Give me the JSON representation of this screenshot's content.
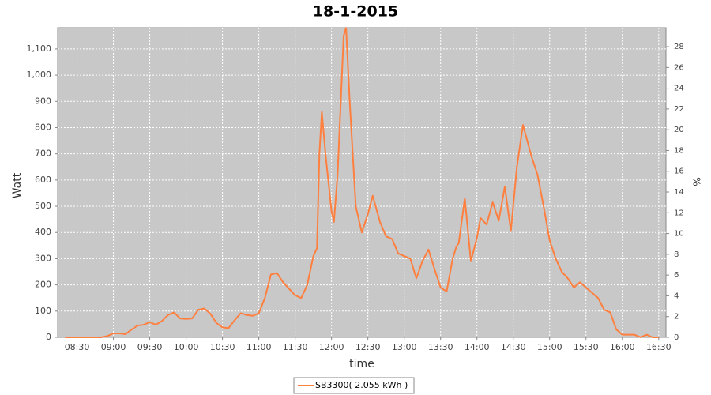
{
  "chart_data": {
    "type": "line",
    "title": "18-1-2015",
    "x_label": "time",
    "y_label": "Watt",
    "y2_label": "%",
    "x": [
      "08:20",
      "08:30",
      "08:40",
      "08:50",
      "08:55",
      "09:00",
      "09:05",
      "09:10",
      "09:15",
      "09:20",
      "09:25",
      "09:30",
      "09:35",
      "09:40",
      "09:45",
      "09:50",
      "09:55",
      "10:00",
      "10:05",
      "10:10",
      "10:15",
      "10:20",
      "10:25",
      "10:30",
      "10:35",
      "10:40",
      "10:45",
      "10:50",
      "10:55",
      "11:00",
      "11:05",
      "11:10",
      "11:15",
      "11:20",
      "11:25",
      "11:30",
      "11:35",
      "11:40",
      "11:45",
      "11:48",
      "11:50",
      "11:52",
      "11:55",
      "12:00",
      "12:02",
      "12:05",
      "12:10",
      "12:12",
      "12:15",
      "12:20",
      "12:25",
      "12:30",
      "12:34",
      "12:40",
      "12:45",
      "12:50",
      "12:55",
      "13:00",
      "13:05",
      "13:10",
      "13:15",
      "13:20",
      "13:25",
      "13:30",
      "13:35",
      "13:40",
      "13:43",
      "13:45",
      "13:50",
      "13:55",
      "14:00",
      "14:03",
      "14:08",
      "14:13",
      "14:18",
      "14:23",
      "14:28",
      "14:33",
      "14:38",
      "14:45",
      "14:50",
      "14:55",
      "15:00",
      "15:05",
      "15:10",
      "15:15",
      "15:20",
      "15:25",
      "15:30",
      "15:35",
      "15:40",
      "15:45",
      "15:50",
      "15:55",
      "16:00",
      "16:05",
      "16:10",
      "16:15",
      "16:20",
      "16:25",
      "16:30"
    ],
    "series": [
      {
        "name": "SB3300( 2.055 kWh )",
        "color": "#ff7f3f",
        "values": [
          0,
          0,
          0,
          0,
          5,
          15,
          15,
          12,
          30,
          45,
          48,
          58,
          48,
          62,
          85,
          95,
          72,
          70,
          72,
          105,
          110,
          90,
          55,
          38,
          35,
          65,
          92,
          85,
          82,
          92,
          150,
          240,
          245,
          210,
          185,
          160,
          150,
          200,
          310,
          340,
          700,
          860,
          700,
          480,
          440,
          620,
          1150,
          1180,
          900,
          500,
          400,
          470,
          540,
          440,
          385,
          375,
          320,
          310,
          300,
          225,
          290,
          335,
          260,
          190,
          175,
          300,
          345,
          360,
          530,
          290,
          380,
          455,
          430,
          515,
          445,
          575,
          405,
          650,
          810,
          690,
          620,
          500,
          370,
          300,
          250,
          225,
          190,
          210,
          190,
          170,
          150,
          105,
          95,
          30,
          10,
          10,
          10,
          0,
          10,
          0,
          0
        ]
      }
    ],
    "xlim": [
      "08:14",
      "16:36"
    ],
    "xticks": [
      "08:30",
      "09:00",
      "09:30",
      "10:00",
      "10:30",
      "11:00",
      "11:30",
      "12:00",
      "12:30",
      "13:00",
      "13:30",
      "14:00",
      "14:30",
      "15:00",
      "15:30",
      "16:00",
      "16:30"
    ],
    "ylim": [
      0,
      1181
    ],
    "yticks": [
      0,
      100,
      200,
      300,
      400,
      500,
      600,
      700,
      800,
      900,
      {
        "value": 1000,
        "label": "1,000"
      },
      {
        "value": 1100,
        "label": "1,100"
      }
    ],
    "y2lim": [
      0,
      29.83
    ],
    "y2ticks": [
      0,
      2,
      4,
      6,
      8,
      10,
      12,
      14,
      16,
      18,
      20,
      22,
      24,
      26,
      28
    ],
    "grid": true,
    "legend": "bottom"
  }
}
